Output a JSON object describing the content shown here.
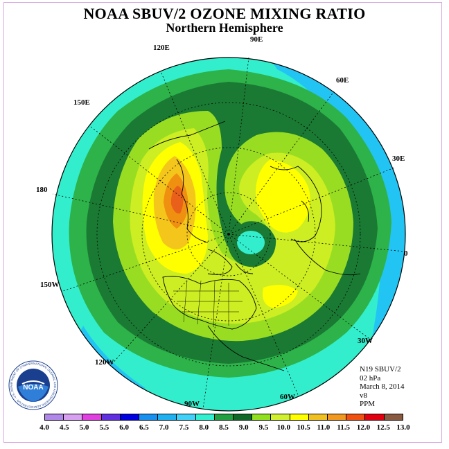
{
  "header": {
    "title": "NOAA SBUV/2 OZONE MIXING RATIO",
    "subtitle": "Northern Hemisphere"
  },
  "map": {
    "projection": "north-polar-stereographic",
    "longitude_labels": [
      "90E",
      "60E",
      "30E",
      "0",
      "30W",
      "60W",
      "90W",
      "120W",
      "150W",
      "180",
      "150E",
      "120E"
    ],
    "field_colors": {
      "outer": "#33eecc",
      "ring_8_0": "#2db34a",
      "ring_8_5": "#1a7a33",
      "ring_9_0": "#99dd22",
      "ring_9_5": "#ccee22",
      "ring_10_0": "#ffff00",
      "ring_10_5": "#f4c61c",
      "ring_11_0": "#f09010",
      "ring_11_5": "#e8601a",
      "low_blue": "#22c4f4"
    }
  },
  "info": {
    "instrument": "N19 SBUV/2",
    "level": "02 hPa",
    "date": "March 8, 2014",
    "version": "v8",
    "units": "PPM"
  },
  "colorbar": {
    "ticks": [
      "4.0",
      "4.5",
      "5.0",
      "5.5",
      "6.0",
      "6.5",
      "7.0",
      "7.5",
      "8.0",
      "8.5",
      "9.0",
      "9.5",
      "10.0",
      "10.5",
      "11.0",
      "11.5",
      "12.0",
      "12.5",
      "13.0"
    ],
    "colors": [
      "#b088e8",
      "#d8a0f0",
      "#e040e0",
      "#6030e0",
      "#0000e0",
      "#1890f0",
      "#20b0f0",
      "#40d0f8",
      "#30f0d0",
      "#20a040",
      "#106828",
      "#90e020",
      "#d0f030",
      "#ffff00",
      "#f0c020",
      "#f09820",
      "#f05010",
      "#e00010",
      "#8a5a40"
    ]
  },
  "logo": {
    "text": "NOAA",
    "ring_text": "NATIONAL OCEANIC AND ATMOSPHERIC ADMINISTRATION · U.S. DEPARTMENT OF COMMERCE"
  }
}
